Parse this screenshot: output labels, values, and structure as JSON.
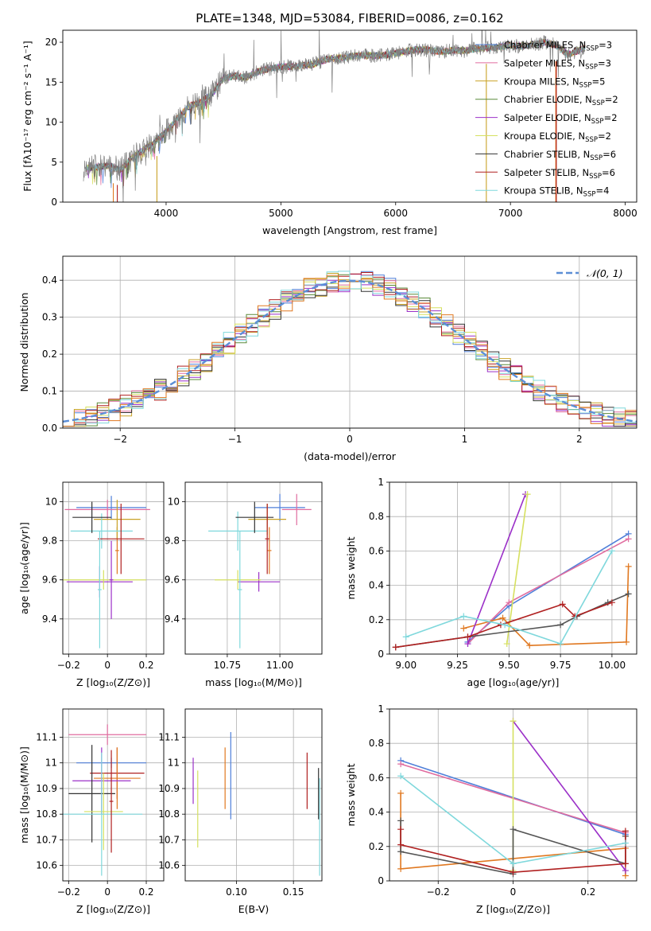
{
  "figure": {
    "title": "PLATE=1348, MJD=53084, FIBERID=0086, z=0.162"
  },
  "models": [
    {
      "name": "Chabrier MILES",
      "nssp": "3",
      "color": "#4f7fd9"
    },
    {
      "name": "Salpeter MILES",
      "nssp": "3",
      "color": "#e06c9f"
    },
    {
      "name": "Kroupa MILES",
      "nssp": "5",
      "color": "#c9a227"
    },
    {
      "name": "Chabrier ELODIE",
      "nssp": "2",
      "color": "#5a8a3a"
    },
    {
      "name": "Salpeter ELODIE",
      "nssp": "2",
      "color": "#9b30c8"
    },
    {
      "name": "Kroupa ELODIE",
      "nssp": "2",
      "color": "#d6e060"
    },
    {
      "name": "Chabrier STELIB",
      "nssp": "6",
      "color": "#333333"
    },
    {
      "name": "Salpeter STELIB",
      "nssp": "6",
      "color": "#b02020"
    },
    {
      "name": "Kroupa STELIB",
      "nssp": "4",
      "color": "#7fd8dc"
    }
  ],
  "chart_data": [
    {
      "id": "spectrum",
      "type": "line",
      "xlabel": "wavelength [Angstrom, rest frame]",
      "ylabel": "Flux [fλ10⁻¹⁷ erg cm⁻² s⁻¹ A⁻¹]",
      "xlim": [
        3100,
        8100
      ],
      "ylim": [
        0,
        21.5
      ],
      "xticks": [
        4000,
        5000,
        6000,
        7000,
        8000
      ],
      "yticks": [
        0,
        5,
        10,
        15,
        20
      ],
      "x": [
        3280,
        3400,
        3500,
        3600,
        3700,
        3800,
        3900,
        4000,
        4100,
        4200,
        4300,
        4400,
        4500,
        4600,
        4700,
        4800,
        4900,
        5000,
        5100,
        5200,
        5300,
        5400,
        5500,
        5600,
        5700,
        5800,
        5900,
        6000,
        6100,
        6200,
        6300,
        6400,
        6500,
        6600,
        6700,
        6800,
        6900,
        7000,
        7100,
        7200,
        7300,
        7400,
        7500,
        7600,
        7650
      ],
      "y": [
        4.2,
        4.4,
        4.6,
        4.0,
        5.5,
        6.5,
        7.5,
        8.8,
        10.5,
        12.0,
        12.5,
        13.5,
        15.5,
        15.8,
        15.6,
        16.3,
        16.7,
        16.9,
        17.0,
        17.1,
        17.3,
        17.9,
        18.0,
        18.2,
        18.4,
        18.3,
        18.4,
        18.6,
        18.9,
        19.1,
        19.0,
        18.8,
        19.0,
        18.9,
        19.2,
        19.3,
        19.4,
        19.6,
        19.5,
        19.7,
        20.0,
        19.6,
        18.5,
        19.0,
        19.3
      ],
      "series": [
        "Chabrier MILES",
        "Salpeter MILES",
        "Kroupa MILES",
        "Chabrier ELODIE",
        "Salpeter ELODIE",
        "Kroupa ELODIE",
        "Chabrier STELIB",
        "Salpeter STELIB",
        "Kroupa STELIB"
      ],
      "legend": "right"
    },
    {
      "id": "residuals",
      "type": "histogram",
      "xlabel": "(data-model)/error",
      "ylabel": "Normed distribution",
      "xlim": [
        -2.5,
        2.5
      ],
      "ylim": [
        0,
        0.465
      ],
      "xticks": [
        -2,
        -1,
        0,
        1,
        2
      ],
      "yticks": [
        0.0,
        0.1,
        0.2,
        0.3,
        0.4
      ],
      "bin_width": 0.1,
      "reference": {
        "name": "𝒩(0, 1)",
        "mean": 0,
        "sigma": 1,
        "color": "#5b8ed6"
      },
      "legend": "top-right"
    },
    {
      "id": "age-vs-Z",
      "type": "errorbar",
      "xlabel": "Z [log₁₀(Z/Z⊙)]",
      "ylabel": "age  [log₁₀(age/yr)]",
      "xlim": [
        -0.23,
        0.29
      ],
      "ylim": [
        9.22,
        10.1
      ],
      "xticks": [
        -0.2,
        0.0,
        0.2
      ],
      "yticks": [
        9.4,
        9.6,
        9.8,
        10.0
      ],
      "points": [
        {
          "x": 0.02,
          "y": 9.97,
          "xerr": 0.18,
          "yerr": 0.06,
          "color": "#4f7fd9"
        },
        {
          "x": 0.0,
          "y": 9.96,
          "xerr": 0.22,
          "yerr": 0.05,
          "color": "#e06c9f"
        },
        {
          "x": 0.05,
          "y": 9.75,
          "xerr": 0.01,
          "yerr": 0.12,
          "color": "#e07820"
        },
        {
          "x": 0.05,
          "y": 9.91,
          "xerr": 0.12,
          "yerr": 0.1,
          "color": "#c9a227"
        },
        {
          "x": -0.03,
          "y": 9.85,
          "xerr": 0.16,
          "yerr": 0.09,
          "color": "#7fd8dc"
        },
        {
          "x": -0.04,
          "y": 9.59,
          "xerr": 0.17,
          "yerr": 0.08,
          "color": "#9b30c8"
        },
        {
          "x": -0.02,
          "y": 9.6,
          "xerr": 0.22,
          "yerr": 0.05,
          "color": "#d6e060"
        },
        {
          "x": -0.08,
          "y": 9.92,
          "xerr": 0.1,
          "yerr": 0.08,
          "color": "#333333"
        },
        {
          "x": 0.07,
          "y": 9.81,
          "xerr": 0.12,
          "yerr": 0.18,
          "color": "#b02020"
        },
        {
          "x": 0.02,
          "y": 9.6,
          "xerr": 0.01,
          "yerr": 0.2,
          "color": "#9b30c8"
        },
        {
          "x": -0.04,
          "y": 9.55,
          "xerr": 0.01,
          "yerr": 0.3,
          "color": "#7fd8dc"
        }
      ]
    },
    {
      "id": "age-vs-mass",
      "type": "errorbar",
      "xlabel": "mass [log₁₀(M/M⊙)]",
      "ylabel": "",
      "xlim": [
        10.55,
        11.2
      ],
      "ylim": [
        9.22,
        10.1
      ],
      "xticks": [
        10.75,
        11.0
      ],
      "xticklabels": [
        "10.75",
        "11.00"
      ],
      "yticks": [
        9.4,
        9.6,
        9.8,
        10.0
      ],
      "points": [
        {
          "x": 11.0,
          "y": 9.97,
          "xerr": 0.12,
          "yerr": 0.07,
          "color": "#4f7fd9"
        },
        {
          "x": 11.08,
          "y": 9.96,
          "xerr": 0.07,
          "yerr": 0.08,
          "color": "#e06c9f"
        },
        {
          "x": 10.95,
          "y": 9.75,
          "xerr": 0.01,
          "yerr": 0.12,
          "color": "#e07820"
        },
        {
          "x": 10.94,
          "y": 9.91,
          "xerr": 0.09,
          "yerr": 0.08,
          "color": "#c9a227"
        },
        {
          "x": 10.8,
          "y": 9.85,
          "xerr": 0.14,
          "yerr": 0.1,
          "color": "#7fd8dc"
        },
        {
          "x": 10.9,
          "y": 9.59,
          "xerr": 0.1,
          "yerr": 0.05,
          "color": "#9b30c8"
        },
        {
          "x": 10.8,
          "y": 9.6,
          "xerr": 0.11,
          "yerr": 0.05,
          "color": "#d6e060"
        },
        {
          "x": 10.88,
          "y": 9.92,
          "xerr": 0.09,
          "yerr": 0.08,
          "color": "#333333"
        },
        {
          "x": 10.94,
          "y": 9.81,
          "xerr": 0.01,
          "yerr": 0.18,
          "color": "#b02020"
        },
        {
          "x": 10.81,
          "y": 9.55,
          "xerr": 0.01,
          "yerr": 0.3,
          "color": "#7fd8dc"
        }
      ]
    },
    {
      "id": "weight-vs-age",
      "type": "line",
      "xlabel": "age  [log₁₀(age/yr)]",
      "ylabel": "mass weight",
      "xlim": [
        8.92,
        10.12
      ],
      "ylim": [
        0,
        1.0
      ],
      "xticks": [
        9.0,
        9.25,
        9.5,
        9.75,
        10.0
      ],
      "xticklabels": [
        "9.00",
        "9.25",
        "9.50",
        "9.75",
        "10.00"
      ],
      "yticks": [
        0.0,
        0.2,
        0.4,
        0.6,
        0.8,
        1.0
      ],
      "series": [
        {
          "name": "Chabrier MILES",
          "color": "#4f7fd9",
          "x": [
            9.3,
            9.5,
            10.08
          ],
          "y": [
            0.07,
            0.28,
            0.7
          ]
        },
        {
          "name": "Salpeter MILES",
          "color": "#e06c9f",
          "x": [
            9.3,
            9.5,
            10.08
          ],
          "y": [
            0.06,
            0.3,
            0.67
          ]
        },
        {
          "name": "Kroupa MILES",
          "color": "#e07820",
          "x": [
            9.28,
            9.47,
            9.6,
            10.07,
            10.08
          ],
          "y": [
            0.15,
            0.21,
            0.05,
            0.07,
            0.51
          ]
        },
        {
          "name": "Salpeter ELODIE",
          "color": "#9b30c8",
          "x": [
            9.3,
            9.58
          ],
          "y": [
            0.06,
            0.93
          ]
        },
        {
          "name": "Kroupa ELODIE",
          "color": "#d6e060",
          "x": [
            9.49,
            9.59
          ],
          "y": [
            0.06,
            0.93
          ]
        },
        {
          "name": "Chabrier STELIB",
          "color": "#555555",
          "x": [
            8.95,
            9.3,
            9.75,
            9.83,
            9.98,
            10.08
          ],
          "y": [
            0.04,
            0.1,
            0.17,
            0.22,
            0.3,
            0.35
          ]
        },
        {
          "name": "Salpeter STELIB",
          "color": "#b02020",
          "x": [
            8.95,
            9.3,
            9.46,
            9.76,
            9.82,
            10.0
          ],
          "y": [
            0.04,
            0.1,
            0.17,
            0.29,
            0.22,
            0.3
          ]
        },
        {
          "name": "Kroupa STELIB",
          "color": "#7fd8dc",
          "x": [
            9.0,
            9.28,
            9.48,
            9.75,
            10.0
          ],
          "y": [
            0.1,
            0.22,
            0.17,
            0.06,
            0.6
          ]
        }
      ]
    },
    {
      "id": "mass-vs-Z",
      "type": "errorbar",
      "xlabel": "Z [log₁₀(Z/Z⊙)]",
      "ylabel": "mass [log₁₀(M/M⊙)]",
      "xlim": [
        -0.23,
        0.29
      ],
      "ylim": [
        10.54,
        11.21
      ],
      "xticks": [
        -0.2,
        0.0,
        0.2
      ],
      "yticks": [
        10.6,
        10.7,
        10.8,
        10.9,
        11.0,
        11.1
      ],
      "points": [
        {
          "x": 0.0,
          "y": 11.11,
          "xerr": 0.2,
          "yerr": 0.04,
          "color": "#e06c9f"
        },
        {
          "x": 0.02,
          "y": 11.0,
          "xerr": 0.18,
          "yerr": 0.02,
          "color": "#4f7fd9"
        },
        {
          "x": 0.05,
          "y": 10.96,
          "xerr": 0.14,
          "yerr": 0.1,
          "color": "#b02020"
        },
        {
          "x": 0.05,
          "y": 10.94,
          "xerr": 0.12,
          "yerr": 0.12,
          "color": "#e07820"
        },
        {
          "x": -0.03,
          "y": 10.93,
          "xerr": 0.15,
          "yerr": 0.13,
          "color": "#9b30c8"
        },
        {
          "x": -0.08,
          "y": 10.88,
          "xerr": 0.12,
          "yerr": 0.19,
          "color": "#333333"
        },
        {
          "x": -0.02,
          "y": 10.81,
          "xerr": 0.1,
          "yerr": 0.15,
          "color": "#d6e060"
        },
        {
          "x": -0.03,
          "y": 10.8,
          "xerr": 0.21,
          "yerr": 0.24,
          "color": "#7fd8dc"
        },
        {
          "x": 0.02,
          "y": 10.85,
          "xerr": 0.01,
          "yerr": 0.2,
          "color": "#b02020"
        }
      ]
    },
    {
      "id": "mass-vs-ebv",
      "type": "errorbar",
      "xlabel": "E(B-V)",
      "ylabel": "",
      "xlim": [
        0.055,
        0.175
      ],
      "ylim": [
        10.54,
        11.21
      ],
      "xticks": [
        0.1,
        0.15
      ],
      "xticklabels": [
        "0.10",
        "0.15"
      ],
      "yticks": [
        10.6,
        10.7,
        10.8,
        10.9,
        11.0,
        11.1
      ],
      "points": [
        {
          "x": 0.062,
          "y": 10.93,
          "xerr": 0,
          "yerr": 0.09,
          "color": "#9b30c8"
        },
        {
          "x": 0.066,
          "y": 10.82,
          "xerr": 0,
          "yerr": 0.15,
          "color": "#d6e060"
        },
        {
          "x": 0.09,
          "y": 10.94,
          "xerr": 0,
          "yerr": 0.12,
          "color": "#e07820"
        },
        {
          "x": 0.095,
          "y": 10.95,
          "xerr": 0,
          "yerr": 0.17,
          "color": "#4f7fd9"
        },
        {
          "x": 0.162,
          "y": 10.93,
          "xerr": 0,
          "yerr": 0.11,
          "color": "#b02020"
        },
        {
          "x": 0.172,
          "y": 10.88,
          "xerr": 0,
          "yerr": 0.1,
          "color": "#333333"
        },
        {
          "x": 0.173,
          "y": 10.75,
          "xerr": 0,
          "yerr": 0.19,
          "color": "#7fd8dc"
        }
      ]
    },
    {
      "id": "weight-vs-Z",
      "type": "line",
      "xlabel": "Z [log₁₀(Z/Z⊙)]",
      "ylabel": "mass weight",
      "xlim": [
        -0.33,
        0.33
      ],
      "ylim": [
        0,
        1.0
      ],
      "xticks": [
        -0.2,
        0.0,
        0.2
      ],
      "yticks": [
        0.0,
        0.2,
        0.4,
        0.6,
        0.8,
        1.0
      ],
      "series": [
        {
          "name": "Chabrier MILES",
          "color": "#4f7fd9",
          "x": [
            -0.3,
            0.3
          ],
          "y": [
            0.7,
            0.27
          ]
        },
        {
          "name": "Salpeter MILES",
          "color": "#e06c9f",
          "x": [
            -0.3,
            0.3
          ],
          "y": [
            0.68,
            0.28
          ]
        },
        {
          "name": "Kroupa MILES",
          "color": "#e07820",
          "x": [
            -0.3,
            -0.3,
            0.3,
            0.3
          ],
          "y": [
            0.51,
            0.07,
            0.19,
            0.03
          ]
        },
        {
          "name": "Salpeter ELODIE",
          "color": "#9b30c8",
          "x": [
            0.0,
            0.3
          ],
          "y": [
            0.93,
            0.06
          ]
        },
        {
          "name": "Kroupa ELODIE",
          "color": "#d6e060",
          "x": [
            0.0,
            0.0
          ],
          "y": [
            0.93,
            0.06
          ]
        },
        {
          "name": "Chabrier STELIB",
          "color": "#555555",
          "x": [
            -0.3,
            -0.3,
            0.0,
            0.0,
            0.3,
            0.3
          ],
          "y": [
            0.35,
            0.17,
            0.04,
            0.3,
            0.1,
            0.26
          ]
        },
        {
          "name": "Salpeter STELIB",
          "color": "#b02020",
          "x": [
            -0.3,
            -0.3,
            0.0,
            0.3,
            0.3
          ],
          "y": [
            0.3,
            0.21,
            0.05,
            0.1,
            0.29
          ]
        },
        {
          "name": "Kroupa STELIB",
          "color": "#7fd8dc",
          "x": [
            -0.3,
            0.0,
            0.3
          ],
          "y": [
            0.61,
            0.1,
            0.22
          ]
        }
      ]
    }
  ]
}
